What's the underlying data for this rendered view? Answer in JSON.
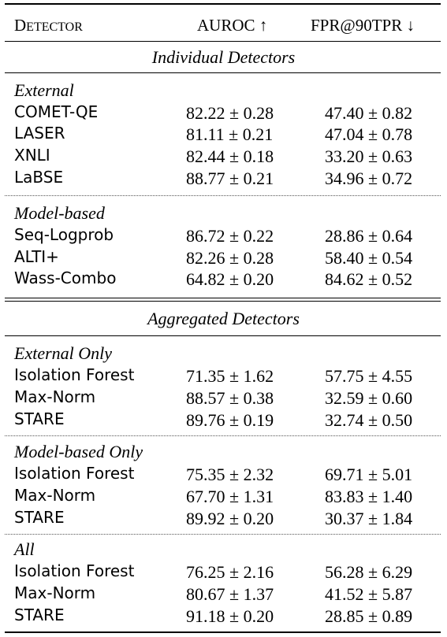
{
  "table": {
    "header": {
      "detector": "Detector",
      "auroc": "AUROC ↑",
      "fpr": "FPR@90TPR ↓"
    },
    "sections": [
      {
        "title": "Individual Detectors",
        "groups": [
          {
            "label": "External",
            "rows": [
              {
                "name": "COMET-QE",
                "auroc": "82.22 ± 0.28",
                "fpr": "47.40 ± 0.82"
              },
              {
                "name": "LASER",
                "auroc": "81.11 ± 0.21",
                "fpr": "47.04 ± 0.78"
              },
              {
                "name": "XNLI",
                "auroc": "82.44 ± 0.18",
                "fpr": "33.20 ± 0.63"
              },
              {
                "name": "LaBSE",
                "auroc": "88.77 ± 0.21",
                "fpr": "34.96 ± 0.72"
              }
            ]
          },
          {
            "label": "Model-based",
            "rows": [
              {
                "name": "Seq-Logprob",
                "auroc": "86.72 ± 0.22",
                "fpr": "28.86 ± 0.64"
              },
              {
                "name": "ALTI+",
                "auroc": "82.26 ± 0.28",
                "fpr": "58.40 ± 0.54"
              },
              {
                "name": "Wass-Combo",
                "auroc": "64.82 ± 0.20",
                "fpr": "84.62 ± 0.52"
              }
            ]
          }
        ]
      },
      {
        "title": "Aggregated Detectors",
        "groups": [
          {
            "label": "External Only",
            "rows": [
              {
                "name": "Isolation Forest",
                "auroc": "71.35 ± 1.62",
                "fpr": "57.75 ± 4.55"
              },
              {
                "name": "Max-Norm",
                "auroc": "88.57 ± 0.38",
                "fpr": "32.59 ± 0.60"
              },
              {
                "name": "STARE",
                "auroc": "89.76 ± 0.19",
                "fpr": "32.74 ± 0.50"
              }
            ]
          },
          {
            "label": "Model-based Only",
            "rows": [
              {
                "name": "Isolation Forest",
                "auroc": "75.35 ± 2.32",
                "fpr": "69.71 ± 5.01"
              },
              {
                "name": "Max-Norm",
                "auroc": "67.70 ± 1.31",
                "fpr": "83.83 ± 1.40"
              },
              {
                "name": "STARE",
                "auroc": "89.92 ± 0.20",
                "fpr": "30.37 ± 1.84"
              }
            ]
          },
          {
            "label": "All",
            "rows": [
              {
                "name": "Isolation Forest",
                "auroc": "76.25 ± 2.16",
                "fpr": "56.28 ± 6.29"
              },
              {
                "name": "Max-Norm",
                "auroc": "80.67 ± 1.37",
                "fpr": "41.52 ± 5.87"
              },
              {
                "name": "STARE",
                "auroc": "91.18 ± 0.20",
                "fpr": "28.85 ± 0.89"
              }
            ]
          }
        ]
      }
    ]
  }
}
